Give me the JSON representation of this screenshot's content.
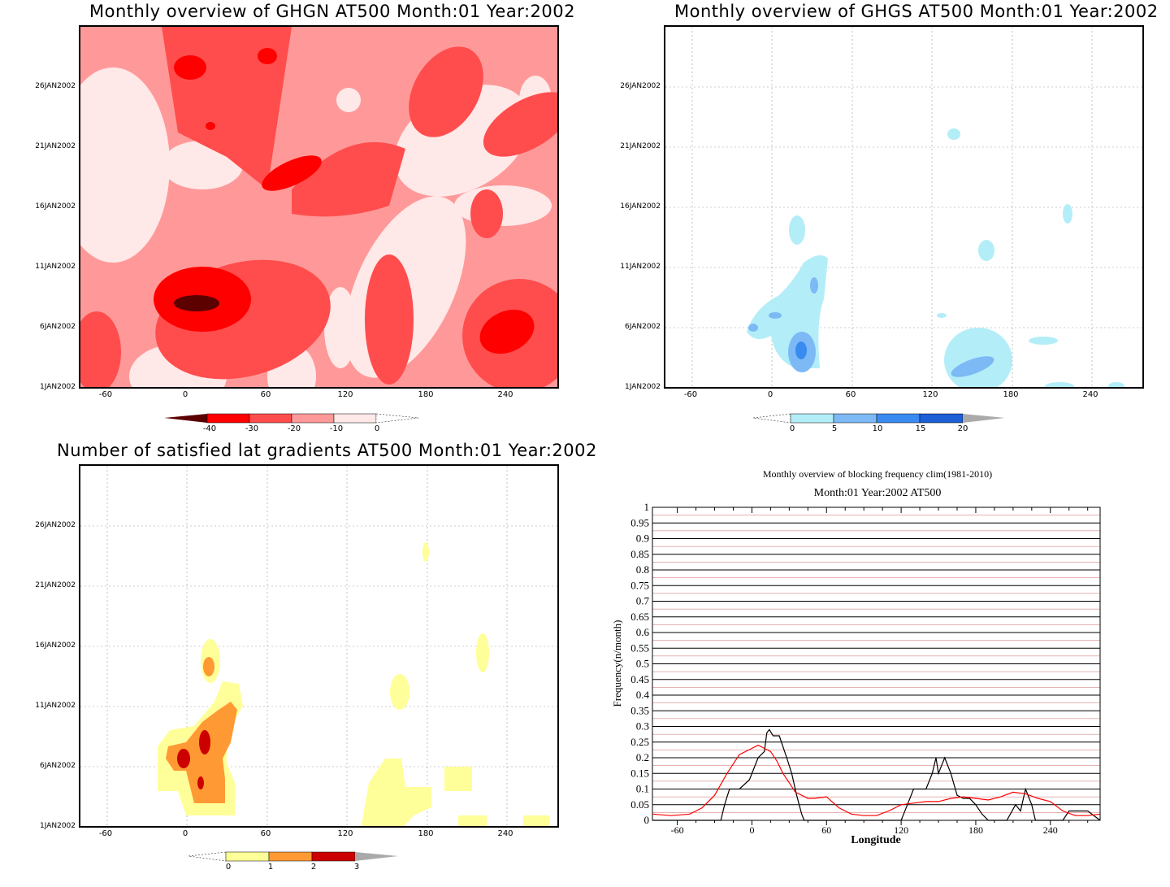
{
  "panels": {
    "ghgn": {
      "title": "Monthly overview of GHGN AT500 Month:01 Year:2002",
      "ylabels": [
        "26JAN2002",
        "21JAN2002",
        "16JAN2002",
        "11JAN2002",
        "6JAN2002",
        "1JAN2002"
      ],
      "xlabels": [
        "-60",
        "0",
        "60",
        "120",
        "180",
        "240"
      ],
      "colorbar": {
        "labels": [
          "-40",
          "-30",
          "-20",
          "-10",
          "0"
        ],
        "colors": [
          "#5c0000",
          "#ff0000",
          "#ff4d4d",
          "#ff9999",
          "#ffe8e8"
        ]
      }
    },
    "ghgs": {
      "title": "Monthly overview of GHGS AT500 Month:01 Year:2002",
      "ylabels": [
        "26JAN2002",
        "21JAN2002",
        "16JAN2002",
        "11JAN2002",
        "6JAN2002",
        "1JAN2002"
      ],
      "xlabels": [
        "-60",
        "0",
        "60",
        "120",
        "180",
        "240"
      ],
      "colorbar": {
        "labels": [
          "0",
          "5",
          "10",
          "15",
          "20"
        ],
        "colors": [
          "#b3eef8",
          "#7db9f5",
          "#3a8bf0",
          "#1c5fd6",
          "#aaaaaa"
        ]
      }
    },
    "lat": {
      "title": "Number of satisfied lat gradients AT500 Month:01 Year:2002",
      "ylabels": [
        "26JAN2002",
        "21JAN2002",
        "16JAN2002",
        "11JAN2002",
        "6JAN2002",
        "1JAN2002"
      ],
      "xlabels": [
        "-60",
        "0",
        "60",
        "120",
        "180",
        "240"
      ],
      "colorbar": {
        "labels": [
          "0",
          "1",
          "2",
          "3"
        ],
        "colors": [
          "#ffff99",
          "#ff9933",
          "#cc0000",
          "#aaaaaa"
        ]
      }
    }
  },
  "chart_data": {
    "type": "line",
    "title": "Monthly overview of blocking frequency clim(1981-2010)",
    "subtitle": "Month:01 Year:2002  AT500",
    "xlabel": "Longitude",
    "ylabel": "Frequency(n/month)",
    "xlim": [
      -80,
      280
    ],
    "ylim": [
      0,
      1
    ],
    "xticks": [
      "-60",
      "0",
      "60",
      "120",
      "180",
      "240"
    ],
    "yticks": [
      "0",
      "0.05",
      "0.1",
      "0.15",
      "0.2",
      "0.25",
      "0.3",
      "0.35",
      "0.4",
      "0.45",
      "0.5",
      "0.55",
      "0.6",
      "0.65",
      "0.7",
      "0.75",
      "0.8",
      "0.85",
      "0.9",
      "0.95",
      "1"
    ],
    "grid": true,
    "series": [
      {
        "color": "#000000",
        "x": [
          -80,
          -25,
          -22,
          -18,
          -10,
          -2,
          5,
          10,
          12,
          14,
          17,
          22,
          28,
          32,
          36,
          40,
          42,
          44,
          50,
          60,
          120,
          125,
          130,
          140,
          145,
          148,
          150,
          155,
          160,
          165,
          170,
          175,
          180,
          185,
          190,
          195,
          198,
          205,
          212,
          216,
          220,
          225,
          228,
          240,
          250,
          255,
          265,
          270,
          280
        ],
        "y": [
          0,
          0,
          0.05,
          0.1,
          0.1,
          0.13,
          0.2,
          0.22,
          0.28,
          0.29,
          0.27,
          0.27,
          0.2,
          0.15,
          0.08,
          0.02,
          0,
          0,
          0,
          0,
          0,
          0.05,
          0.1,
          0.1,
          0.15,
          0.2,
          0.15,
          0.2,
          0.15,
          0.08,
          0.07,
          0.07,
          0.05,
          0.02,
          0,
          0,
          0,
          0,
          0.05,
          0.03,
          0.1,
          0.05,
          0,
          0,
          0,
          0.03,
          0.03,
          0.03,
          0
        ]
      },
      {
        "color": "#ff0000",
        "x": [
          -80,
          -65,
          -50,
          -40,
          -30,
          -20,
          -10,
          0,
          5,
          10,
          15,
          20,
          25,
          30,
          35,
          40,
          45,
          50,
          60,
          70,
          80,
          90,
          100,
          110,
          120,
          130,
          140,
          150,
          160,
          170,
          180,
          190,
          200,
          210,
          220,
          230,
          240,
          250,
          260,
          270,
          280
        ],
        "y": [
          0.02,
          0.015,
          0.02,
          0.04,
          0.08,
          0.15,
          0.21,
          0.23,
          0.24,
          0.23,
          0.22,
          0.19,
          0.15,
          0.12,
          0.09,
          0.08,
          0.07,
          0.07,
          0.075,
          0.04,
          0.02,
          0.015,
          0.015,
          0.03,
          0.05,
          0.055,
          0.06,
          0.06,
          0.07,
          0.075,
          0.07,
          0.065,
          0.075,
          0.09,
          0.085,
          0.07,
          0.06,
          0.03,
          0.015,
          0.015,
          0.02
        ]
      }
    ]
  }
}
